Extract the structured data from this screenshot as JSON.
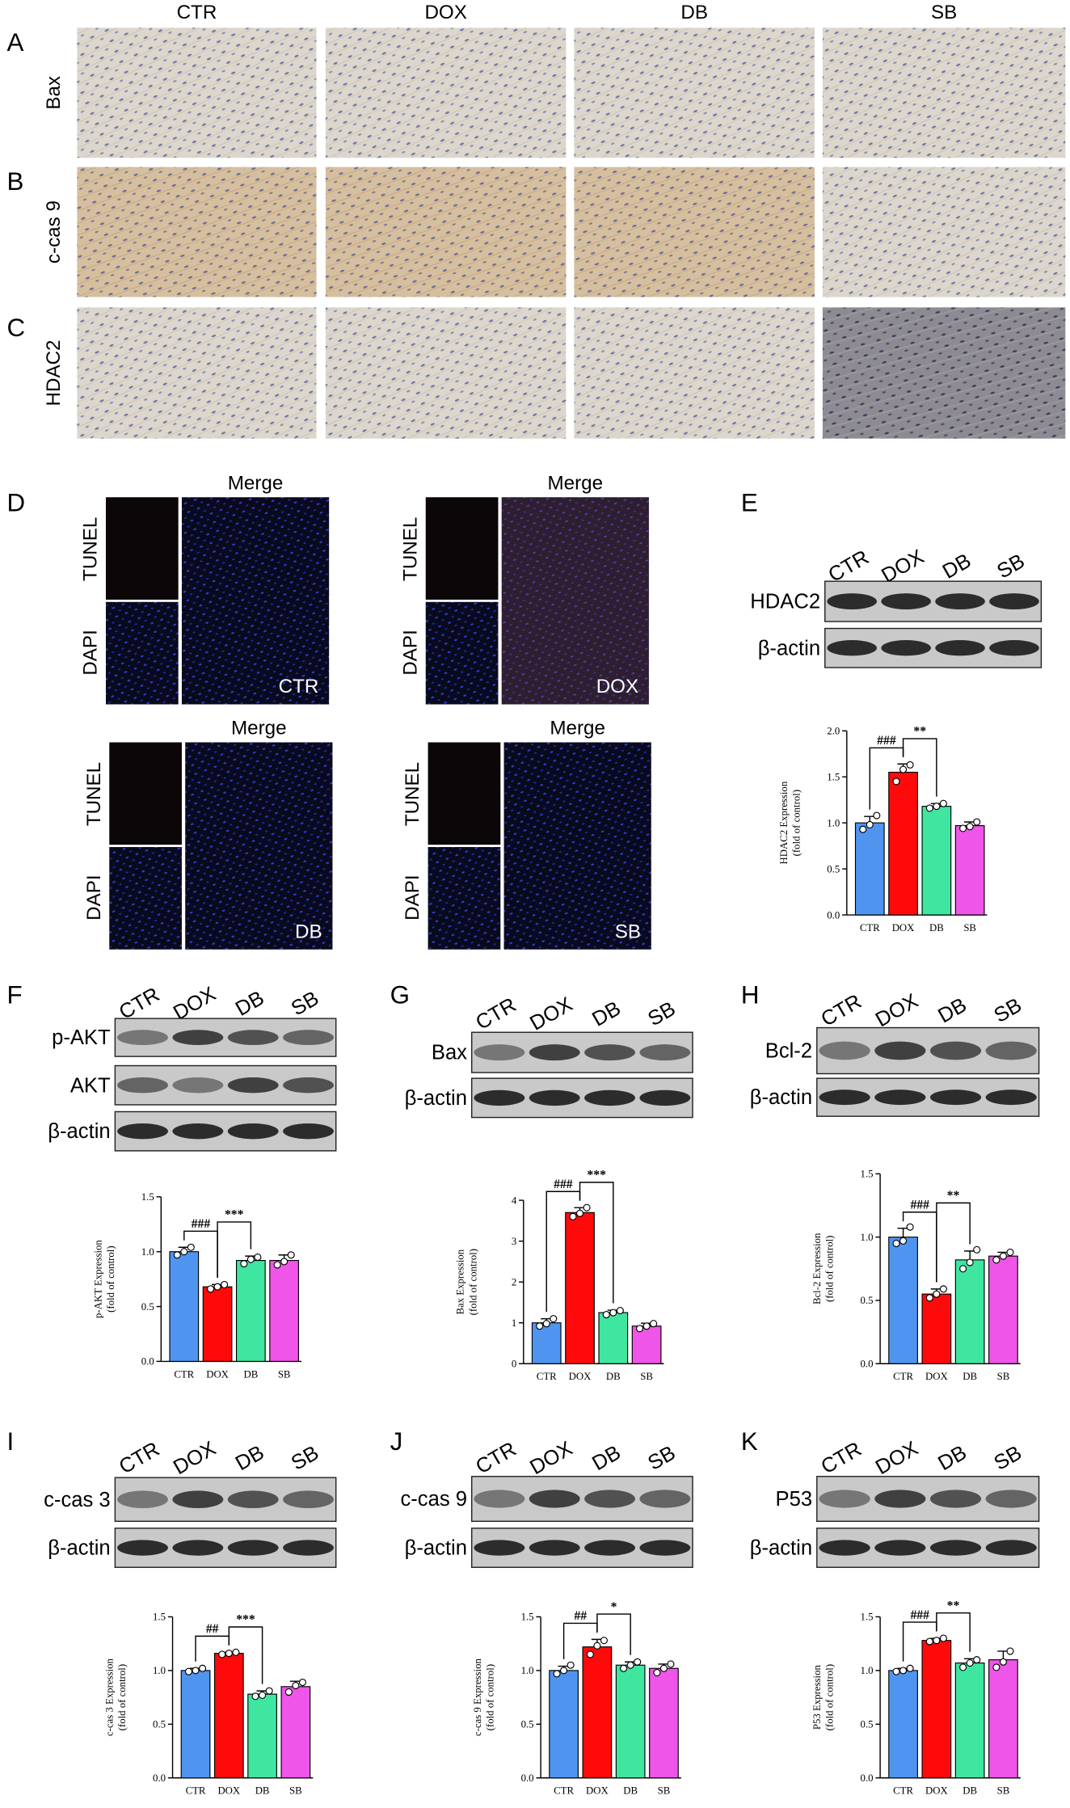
{
  "panel_labels": [
    "A",
    "B",
    "C",
    "D",
    "E",
    "F",
    "G",
    "H",
    "I",
    "J",
    "K"
  ],
  "histology": {
    "columns": [
      "CTR",
      "DOX",
      "DB",
      "SB"
    ],
    "rows": [
      "Bax",
      "c-cas 9",
      "HDAC2"
    ]
  },
  "tunel": {
    "channels": [
      "TUNEL",
      "DAPI"
    ],
    "merge": "Merge",
    "groups": [
      "CTR",
      "DOX",
      "DB",
      "SB"
    ]
  },
  "blots": [
    {
      "lanes": [
        "CTR",
        "DOX",
        "DB",
        "SB"
      ],
      "rows": [
        "HDAC2",
        "β-actin"
      ]
    },
    {
      "lanes": [
        "CTR",
        "DOX",
        "DB",
        "SB"
      ],
      "rows": [
        "p-AKT",
        "AKT",
        "β-actin"
      ]
    },
    {
      "lanes": [
        "CTR",
        "DOX",
        "DB",
        "SB"
      ],
      "rows": [
        "Bax",
        "β-actin"
      ]
    },
    {
      "lanes": [
        "CTR",
        "DOX",
        "DB",
        "SB"
      ],
      "rows": [
        "Bcl-2",
        "β-actin"
      ]
    },
    {
      "lanes": [
        "CTR",
        "DOX",
        "DB",
        "SB"
      ],
      "rows": [
        "c-cas 3",
        "β-actin"
      ]
    },
    {
      "lanes": [
        "CTR",
        "DOX",
        "DB",
        "SB"
      ],
      "rows": [
        "c-cas 9",
        "β-actin"
      ]
    },
    {
      "lanes": [
        "CTR",
        "DOX",
        "DB",
        "SB"
      ],
      "rows": [
        "P53",
        "β-actin"
      ]
    }
  ],
  "chart_data": [
    {
      "type": "bar",
      "ylabel": [
        "HDAC2 Expression",
        "(fold of control)"
      ],
      "categories": [
        "CTR",
        "DOX",
        "DB",
        "SB"
      ],
      "values": [
        1.0,
        1.55,
        1.18,
        0.97
      ],
      "errors": [
        0.07,
        0.09,
        0.03,
        0.04
      ],
      "points": [
        [
          0.93,
          0.98,
          1.08
        ],
        [
          1.45,
          1.58,
          1.63
        ],
        [
          1.16,
          1.18,
          1.21
        ],
        [
          0.94,
          0.96,
          1.01
        ]
      ],
      "colors": [
        "#4f95f0",
        "#ff0a0a",
        "#3ee6a0",
        "#ee55e8"
      ],
      "ylim": [
        0,
        2
      ],
      "yticks": [
        {
          "value": 0,
          "label": "0.0"
        },
        0.5,
        {
          "value": 1,
          "label": "1.0"
        },
        1.5,
        {
          "value": 2,
          "label": "2.0"
        }
      ],
      "annotations": [
        {
          "text": "###",
          "between": [
            "CTR",
            "DOX"
          ]
        },
        {
          "text": "**",
          "between": [
            "DOX",
            "DB"
          ]
        }
      ]
    },
    {
      "type": "bar",
      "ylabel": [
        "p-AKT Expression",
        "(fold of control)"
      ],
      "categories": [
        "CTR",
        "DOX",
        "DB",
        "SB"
      ],
      "values": [
        1.0,
        0.68,
        0.92,
        0.92
      ],
      "errors": [
        0.04,
        0.02,
        0.04,
        0.05
      ],
      "points": [
        [
          0.97,
          1.0,
          1.04
        ],
        [
          0.66,
          0.68,
          0.7
        ],
        [
          0.89,
          0.93,
          0.95
        ],
        [
          0.88,
          0.91,
          0.97
        ]
      ],
      "colors": [
        "#4f95f0",
        "#ff0a0a",
        "#3ee6a0",
        "#ee55e8"
      ],
      "ylim": [
        0,
        1.5
      ],
      "yticks": [
        {
          "value": 0,
          "label": "0.0"
        },
        0.5,
        {
          "value": 1,
          "label": "1.0"
        },
        1.5
      ],
      "annotations": [
        {
          "text": "###",
          "between": [
            "CTR",
            "DOX"
          ]
        },
        {
          "text": "***",
          "between": [
            "DOX",
            "DB"
          ]
        }
      ]
    },
    {
      "type": "bar",
      "ylabel": [
        "Bax Expression",
        "(fold of control)"
      ],
      "categories": [
        "CTR",
        "DOX",
        "DB",
        "SB"
      ],
      "values": [
        1.0,
        3.7,
        1.25,
        0.92
      ],
      "errors": [
        0.1,
        0.12,
        0.06,
        0.07
      ],
      "points": [
        [
          0.92,
          0.98,
          1.1
        ],
        [
          3.6,
          3.68,
          3.82
        ],
        [
          1.2,
          1.25,
          1.3
        ],
        [
          0.86,
          0.92,
          0.98
        ]
      ],
      "colors": [
        "#4f95f0",
        "#ff0a0a",
        "#3ee6a0",
        "#ee55e8"
      ],
      "ylim": [
        0,
        4
      ],
      "yticks": [
        0,
        1,
        2,
        3,
        4
      ],
      "annotations": [
        {
          "text": "###",
          "between": [
            "CTR",
            "DOX"
          ]
        },
        {
          "text": "***",
          "between": [
            "DOX",
            "DB"
          ]
        }
      ]
    },
    {
      "type": "bar",
      "ylabel": [
        "Bcl-2 Expression",
        "(fold of control)"
      ],
      "categories": [
        "CTR",
        "DOX",
        "DB",
        "SB"
      ],
      "values": [
        1.0,
        0.55,
        0.82,
        0.85
      ],
      "errors": [
        0.07,
        0.04,
        0.07,
        0.03
      ],
      "points": [
        [
          0.95,
          0.97,
          1.08
        ],
        [
          0.52,
          0.55,
          0.59
        ],
        [
          0.75,
          0.8,
          0.9
        ],
        [
          0.82,
          0.85,
          0.88
        ]
      ],
      "colors": [
        "#4f95f0",
        "#ff0a0a",
        "#3ee6a0",
        "#ee55e8"
      ],
      "ylim": [
        0,
        1.5
      ],
      "yticks": [
        {
          "value": 0,
          "label": "0.0"
        },
        0.5,
        {
          "value": 1,
          "label": "1.0"
        },
        1.5
      ],
      "annotations": [
        {
          "text": "###",
          "between": [
            "CTR",
            "DOX"
          ]
        },
        {
          "text": "**",
          "between": [
            "DOX",
            "DB"
          ]
        }
      ]
    },
    {
      "type": "bar",
      "ylabel": [
        "c-cas 3 Expression",
        "(fold of control)"
      ],
      "categories": [
        "CTR",
        "DOX",
        "DB",
        "SB"
      ],
      "values": [
        1.0,
        1.16,
        0.78,
        0.85
      ],
      "errors": [
        0.02,
        0.01,
        0.03,
        0.05
      ],
      "points": [
        [
          0.99,
          1.0,
          1.02
        ],
        [
          1.15,
          1.16,
          1.17
        ],
        [
          0.76,
          0.77,
          0.81
        ],
        [
          0.8,
          0.86,
          0.89
        ]
      ],
      "colors": [
        "#4f95f0",
        "#ff0a0a",
        "#3ee6a0",
        "#ee55e8"
      ],
      "ylim": [
        0,
        1.5
      ],
      "yticks": [
        {
          "value": 0,
          "label": "0.0"
        },
        0.5,
        {
          "value": 1,
          "label": "1.0"
        },
        1.5
      ],
      "annotations": [
        {
          "text": "##",
          "between": [
            "CTR",
            "DOX"
          ]
        },
        {
          "text": "***",
          "between": [
            "DOX",
            "DB"
          ]
        }
      ]
    },
    {
      "type": "bar",
      "ylabel": [
        "c-cas 9 Expression",
        "(fold of control)"
      ],
      "categories": [
        "CTR",
        "DOX",
        "DB",
        "SB"
      ],
      "values": [
        1.0,
        1.22,
        1.05,
        1.02
      ],
      "errors": [
        0.04,
        0.07,
        0.03,
        0.04
      ],
      "points": [
        [
          0.97,
          1.0,
          1.05
        ],
        [
          1.15,
          1.23,
          1.28
        ],
        [
          1.02,
          1.05,
          1.08
        ],
        [
          0.98,
          1.02,
          1.06
        ]
      ],
      "colors": [
        "#4f95f0",
        "#ff0a0a",
        "#3ee6a0",
        "#ee55e8"
      ],
      "ylim": [
        0,
        1.5
      ],
      "yticks": [
        {
          "value": 0,
          "label": "0.0"
        },
        0.5,
        {
          "value": 1,
          "label": "1.0"
        },
        1.5
      ],
      "annotations": [
        {
          "text": "##",
          "between": [
            "CTR",
            "DOX"
          ]
        },
        {
          "text": "*",
          "between": [
            "DOX",
            "DB"
          ]
        }
      ]
    },
    {
      "type": "bar",
      "ylabel": [
        "P53 Expression",
        "(fold of control)"
      ],
      "categories": [
        "CTR",
        "DOX",
        "DB",
        "SB"
      ],
      "values": [
        1.0,
        1.28,
        1.07,
        1.1
      ],
      "errors": [
        0.02,
        0.02,
        0.04,
        0.08
      ],
      "points": [
        [
          0.99,
          1.0,
          1.02
        ],
        [
          1.27,
          1.28,
          1.3
        ],
        [
          1.03,
          1.07,
          1.1
        ],
        [
          1.03,
          1.08,
          1.18
        ]
      ],
      "colors": [
        "#4f95f0",
        "#ff0a0a",
        "#3ee6a0",
        "#ee55e8"
      ],
      "ylim": [
        0,
        1.5
      ],
      "yticks": [
        {
          "value": 0,
          "label": "0.0"
        },
        0.5,
        {
          "value": 1,
          "label": "1.0"
        },
        1.5
      ],
      "annotations": [
        {
          "text": "###",
          "between": [
            "CTR",
            "DOX"
          ]
        },
        {
          "text": "**",
          "between": [
            "DOX",
            "DB"
          ]
        }
      ]
    }
  ]
}
